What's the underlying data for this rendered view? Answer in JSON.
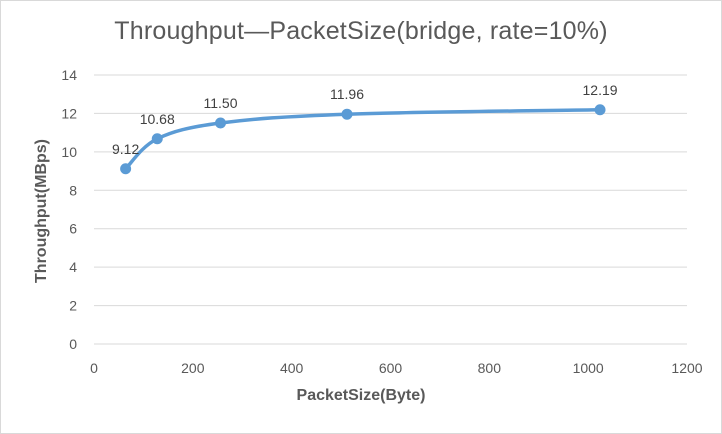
{
  "chart_data": {
    "type": "line",
    "title": "Throughput—PacketSize(bridge, rate=10%)",
    "xlabel": "PacketSize(Byte)",
    "ylabel": "Throughput(MBps)",
    "xlim": [
      0,
      1200
    ],
    "ylim": [
      0,
      14
    ],
    "xticks": [
      0,
      200,
      400,
      600,
      800,
      1000,
      1200
    ],
    "yticks": [
      0,
      2,
      4,
      6,
      8,
      10,
      12,
      14
    ],
    "grid": true,
    "legend": "none",
    "smooth": true,
    "color": "#5b9bd5",
    "series": [
      {
        "x": [
          64,
          128,
          256,
          512,
          1024
        ],
        "values": [
          9.12,
          10.68,
          11.5,
          11.96,
          12.19
        ],
        "labels": [
          "9.12",
          "10.68",
          "11.50",
          "11.96",
          "12.19"
        ]
      }
    ]
  }
}
